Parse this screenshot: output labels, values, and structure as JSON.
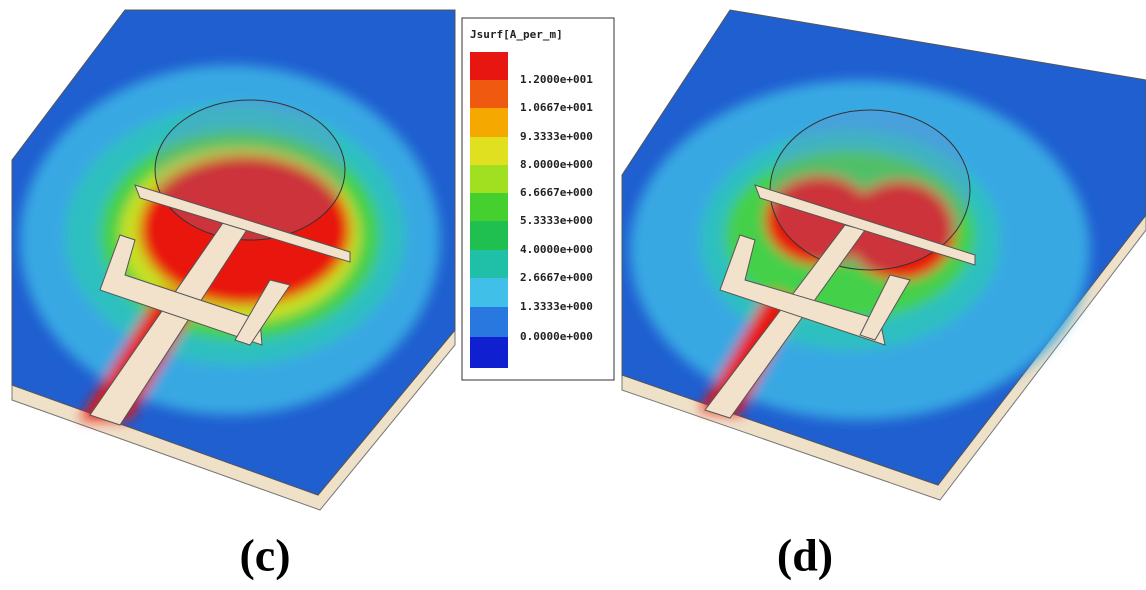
{
  "legend": {
    "title": "Jsurf[A_per_m]",
    "labels": [
      "1.2000e+001",
      "1.0667e+001",
      "9.3333e+000",
      "8.0000e+000",
      "6.6667e+000",
      "5.3333e+000",
      "4.0000e+000",
      "2.6667e+000",
      "1.3333e+000",
      "0.0000e+000"
    ]
  },
  "panels": [
    {
      "label": "(c)"
    },
    {
      "label": "(d)"
    }
  ]
}
